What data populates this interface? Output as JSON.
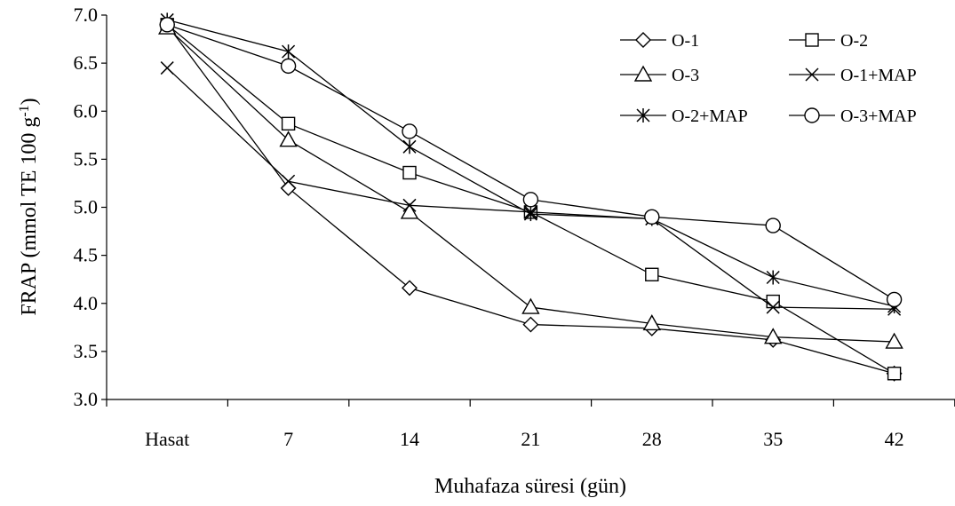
{
  "chart_data": {
    "type": "line",
    "title": "",
    "xlabel": "Muhafaza süresi (gün)",
    "ylabel_main": "FRAP (mmol TE 100 g",
    "ylabel_sup": "-1",
    "ylabel_close": ")",
    "categories": [
      "Hasat",
      "7",
      "14",
      "21",
      "28",
      "35",
      "42"
    ],
    "ylim": [
      3.0,
      7.0
    ],
    "yticks": [
      "3.0",
      "3.5",
      "4.0",
      "4.5",
      "5.0",
      "5.5",
      "6.0",
      "6.5",
      "7.0"
    ],
    "grid": false,
    "legend_placement": "top-right",
    "series": [
      {
        "name": "O-1",
        "marker": "diamond",
        "values": [
          6.9,
          5.2,
          4.16,
          3.78,
          3.74,
          3.62,
          3.27
        ]
      },
      {
        "name": "O-2",
        "marker": "square",
        "values": [
          6.9,
          5.87,
          5.36,
          4.95,
          4.3,
          4.02,
          3.27
        ]
      },
      {
        "name": "O-3",
        "marker": "triangle",
        "values": [
          6.87,
          5.7,
          4.95,
          3.96,
          3.79,
          3.65,
          3.6
        ]
      },
      {
        "name": "O-1+MAP",
        "marker": "x",
        "values": [
          6.45,
          5.27,
          5.02,
          4.95,
          4.88,
          3.96,
          3.94
        ]
      },
      {
        "name": "O-2+MAP",
        "marker": "star",
        "values": [
          6.95,
          6.62,
          5.63,
          4.93,
          4.88,
          4.27,
          3.97
        ]
      },
      {
        "name": "O-3+MAP",
        "marker": "circle",
        "values": [
          6.9,
          6.47,
          5.79,
          5.08,
          4.9,
          4.81,
          4.04
        ]
      }
    ]
  }
}
